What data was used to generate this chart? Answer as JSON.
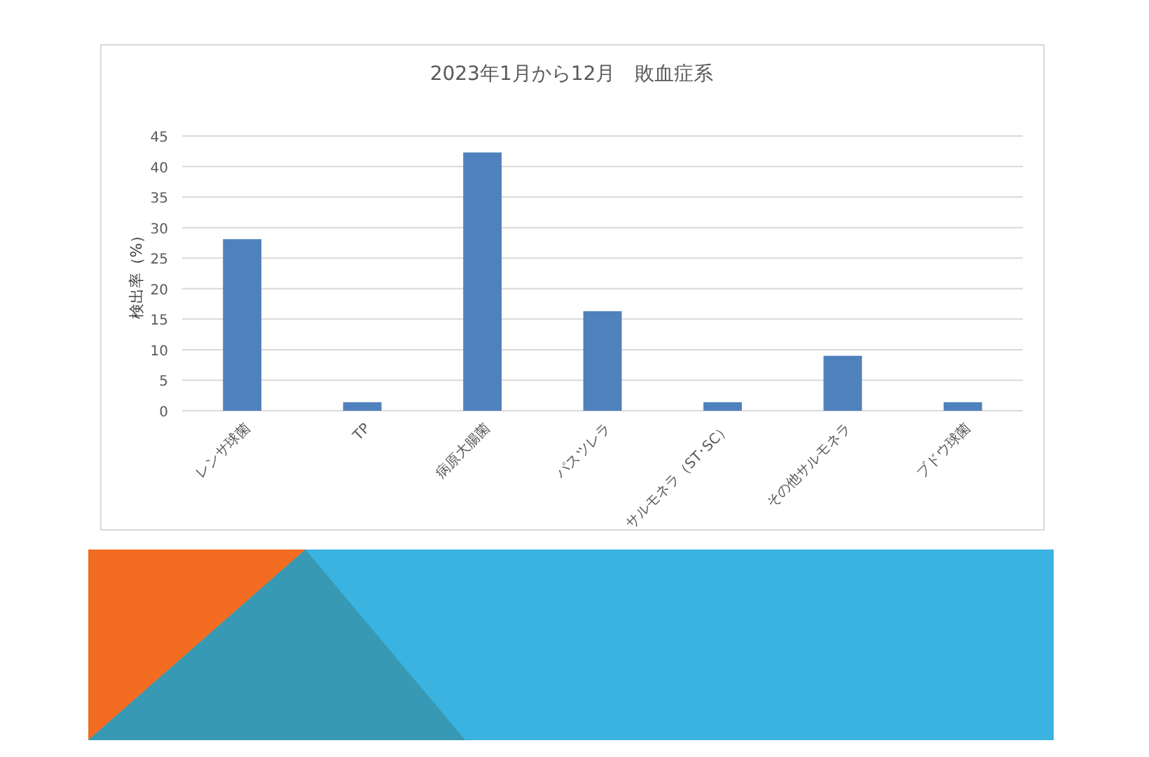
{
  "chart_data": {
    "type": "bar",
    "title": "2023年1月から12月　敗血症系",
    "ylabel": "検出率（%）",
    "categories": [
      "レンサ球菌",
      "TP",
      "病原大腸菌",
      "パスツレラ",
      "サルモネラ（ST･SC）",
      "その他サルモネラ",
      "ブドウ球菌"
    ],
    "values": [
      28.1,
      1.4,
      42.3,
      16.3,
      1.4,
      9.0,
      1.4
    ],
    "color": "#4f81bd",
    "ylim": [
      0,
      45
    ],
    "yticks": [
      0,
      5,
      10,
      15,
      20,
      25,
      30,
      35,
      40,
      45
    ],
    "grid": "y"
  }
}
